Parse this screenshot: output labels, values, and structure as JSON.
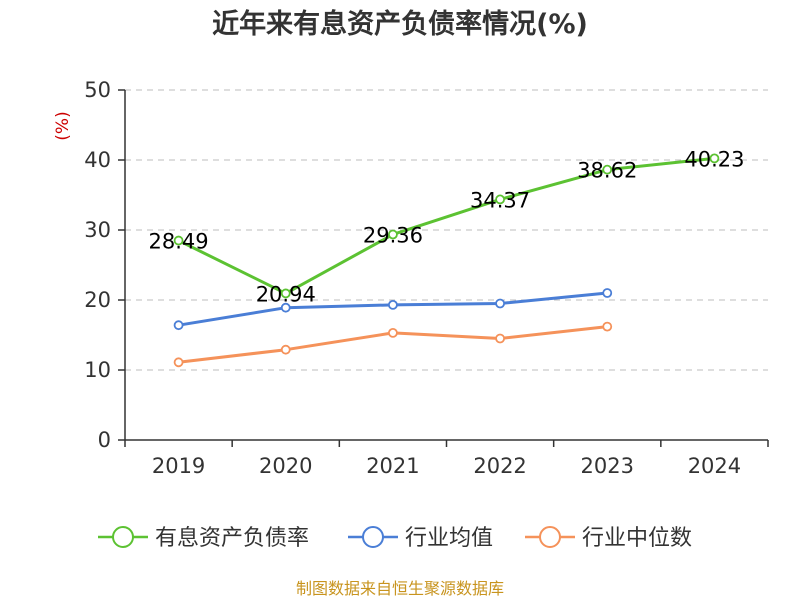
{
  "chart_data": {
    "type": "line",
    "title": "近年来有息资产负债率情况(%)",
    "ylabel": "(%)",
    "categories": [
      "2019",
      "2020",
      "2021",
      "2022",
      "2023",
      "2024"
    ],
    "ylim": [
      0,
      50
    ],
    "yticks": [
      0,
      10,
      20,
      30,
      40,
      50
    ],
    "grid": true,
    "legend_position": "bottom",
    "series": [
      {
        "name": "有息资产负债率",
        "color": "#5cc232",
        "values": [
          28.49,
          20.94,
          29.36,
          34.37,
          38.62,
          40.23
        ],
        "labels": [
          "28.49",
          "20.94",
          "29.36",
          "34.37",
          "38.62",
          "40.23"
        ]
      },
      {
        "name": "行业均值",
        "color": "#4a7ed6",
        "values": [
          16.4,
          18.9,
          19.3,
          19.5,
          21.0,
          null
        ]
      },
      {
        "name": "行业中位数",
        "color": "#f5925a",
        "values": [
          11.1,
          12.9,
          15.3,
          14.5,
          16.2,
          null
        ]
      }
    ]
  },
  "source": "制图数据来自恒生聚源数据库"
}
